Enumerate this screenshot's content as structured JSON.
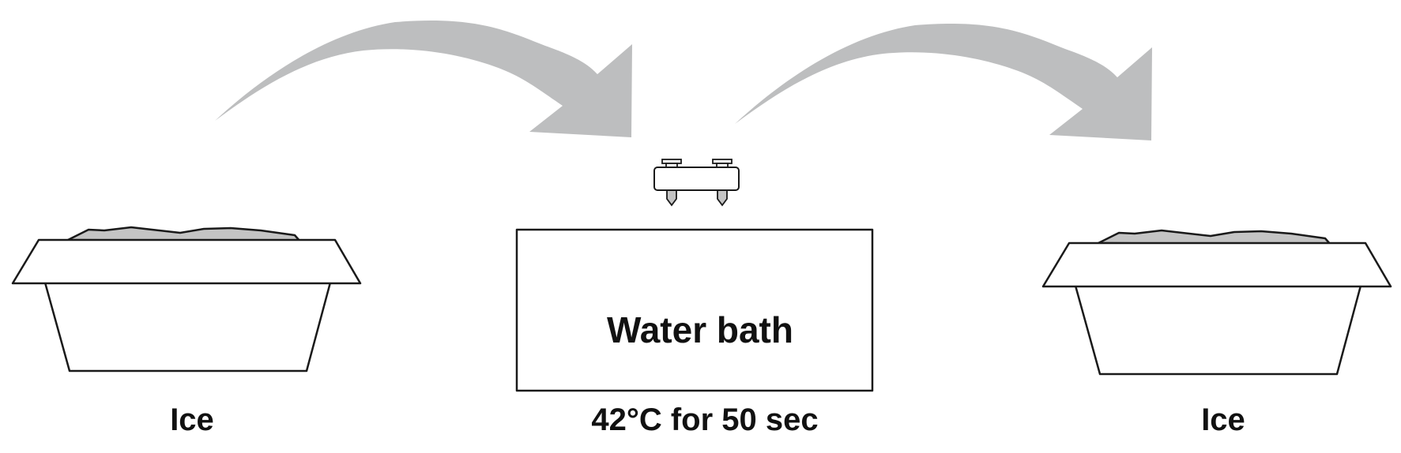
{
  "labels": {
    "left_container": "Ice",
    "water_bath": "Water bath",
    "condition": "42°C for 50 sec",
    "right_container": "Ice"
  },
  "colors": {
    "arrow": "#bdbebf",
    "ice": "#c4c4c4",
    "outline": "#1a1a1a",
    "tube": "#c4c4c4"
  },
  "icons": [
    "curved-arrow-icon",
    "ice-tray-icon",
    "tube-rack-icon",
    "water-bath-icon"
  ]
}
